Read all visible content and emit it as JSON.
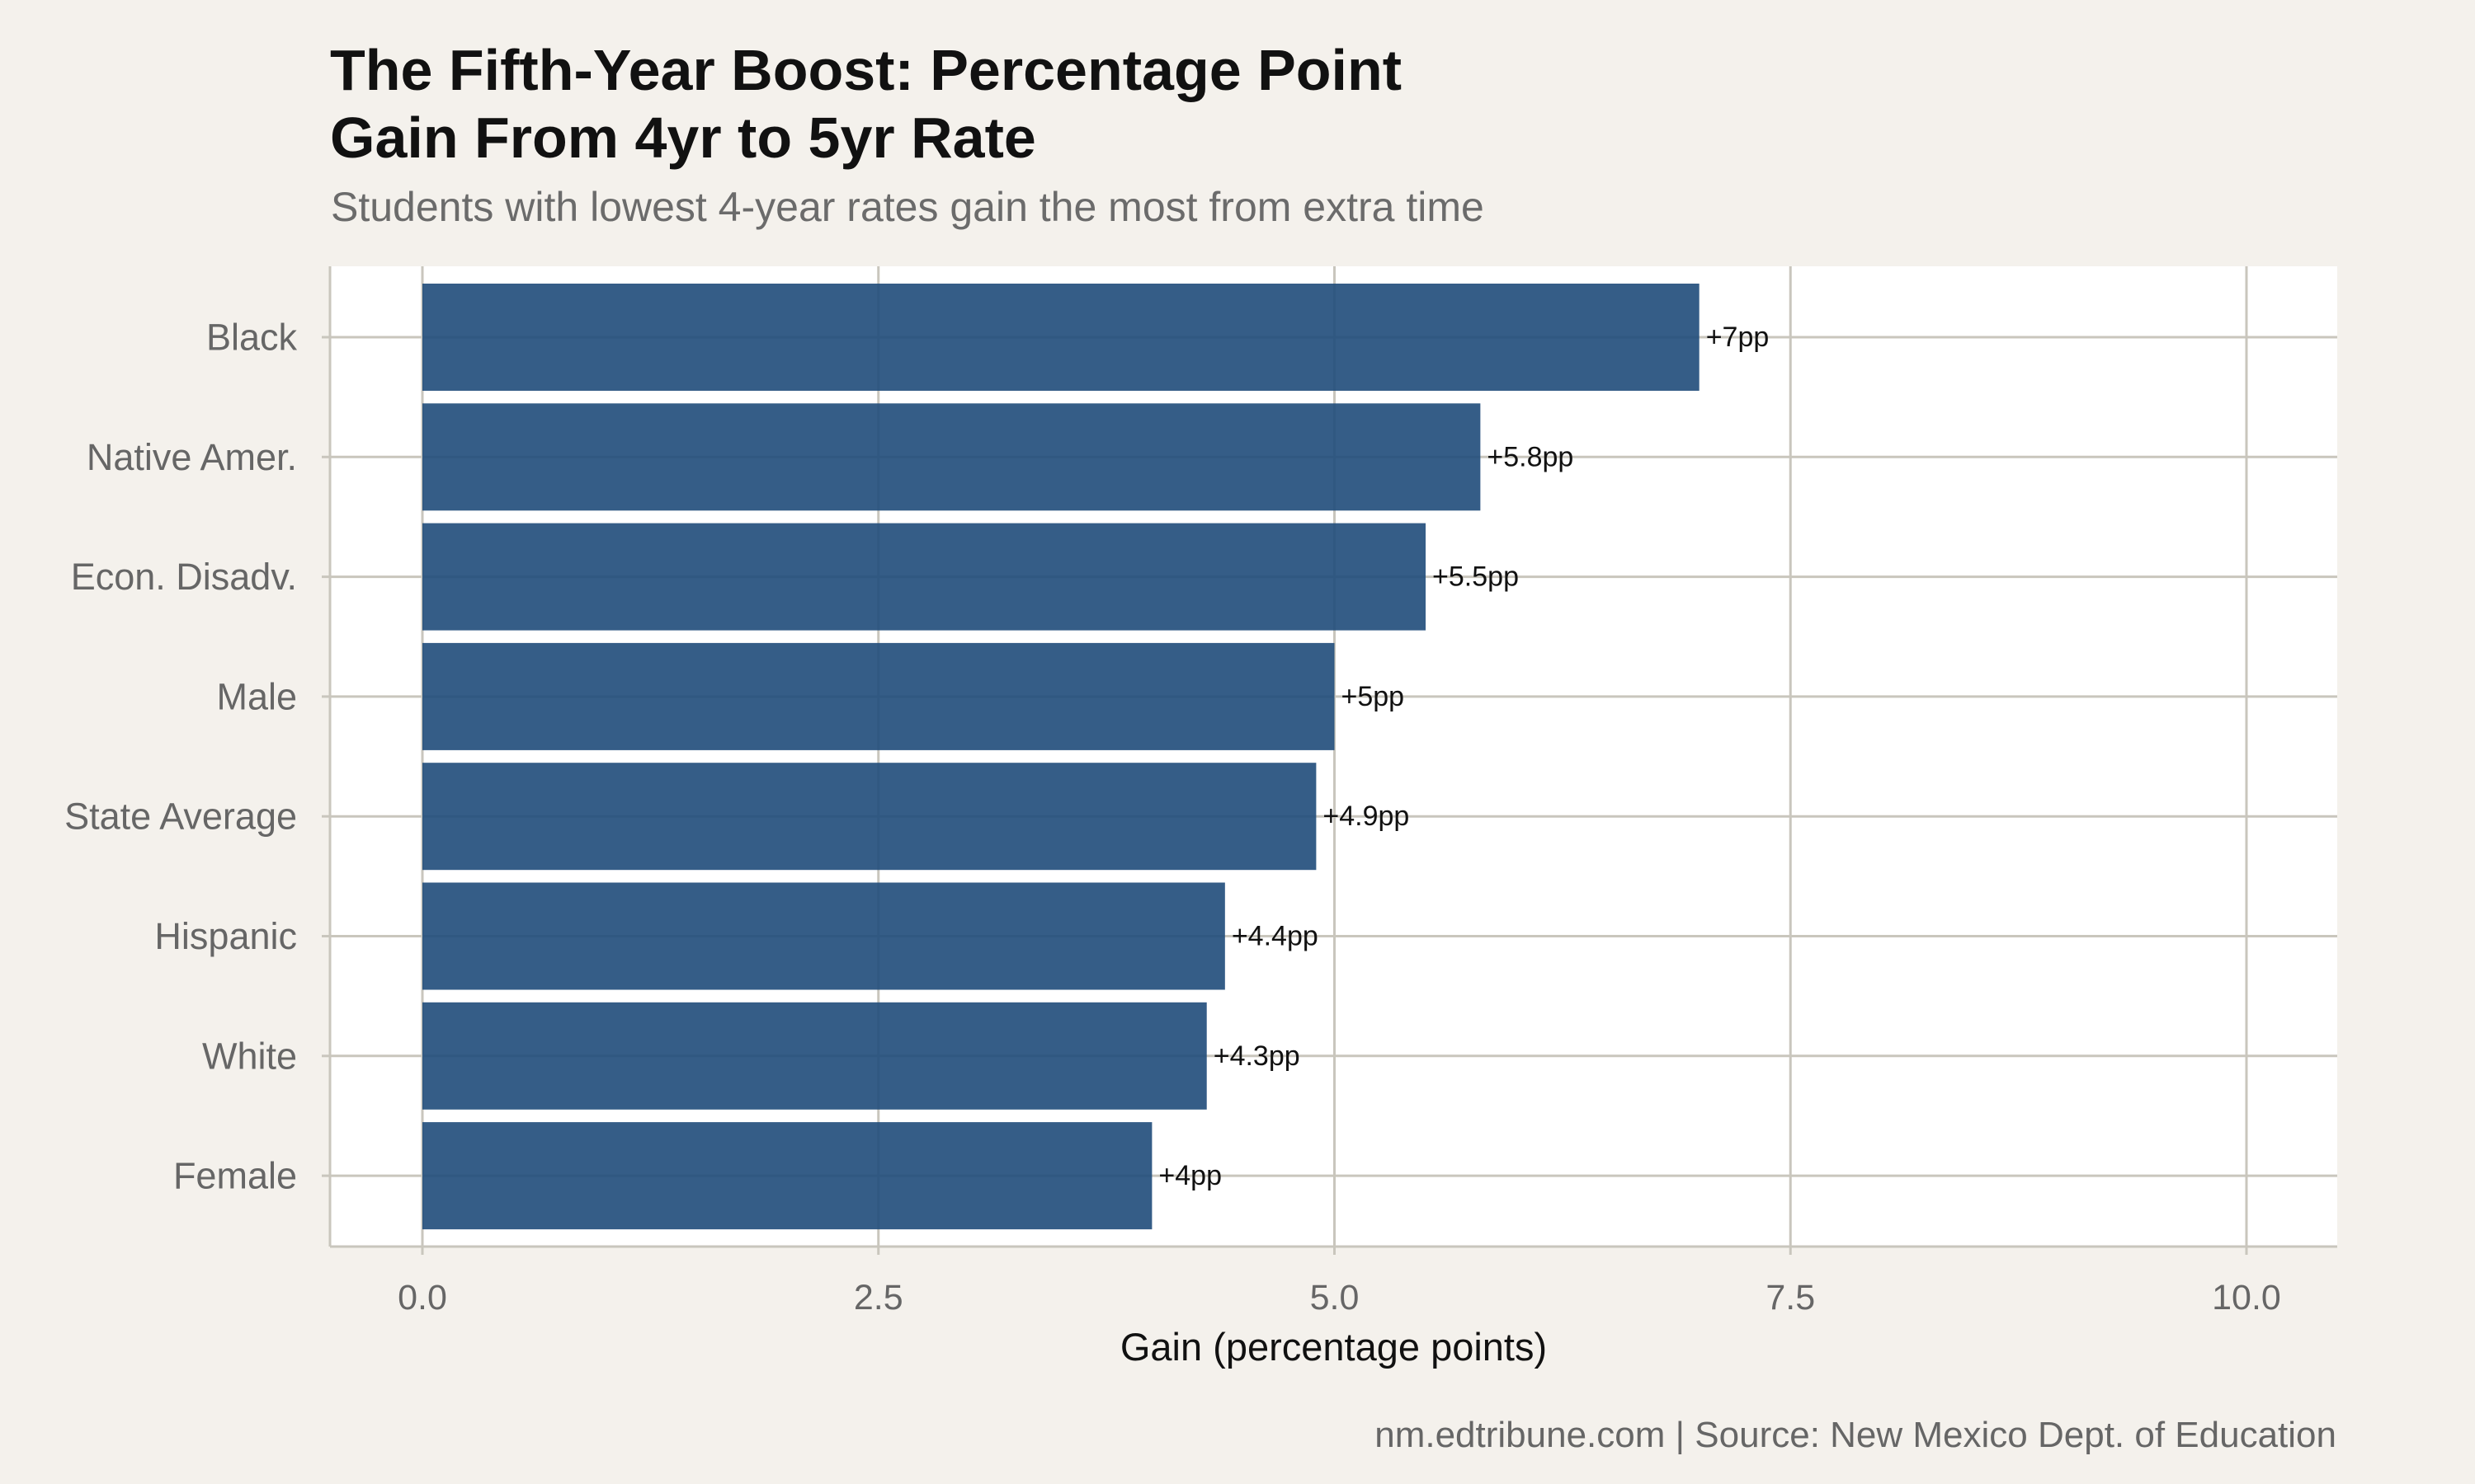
{
  "header": {
    "title": "The Fifth-Year Boost: Percentage Point\nGain From 4yr to 5yr Rate",
    "subtitle": "Students with lowest 4-year rates gain the most from extra time"
  },
  "footer": {
    "caption": "nm.edtribune.com | Source: New Mexico Dept. of Education"
  },
  "colors": {
    "bar": "#1f4b7a",
    "panel": "#ffffff",
    "background": "#f4f1ec",
    "grid": "#c9c6bd"
  },
  "chart_data": {
    "type": "bar",
    "orientation": "horizontal",
    "title": "The Fifth-Year Boost: Percentage Point Gain From 4yr to 5yr Rate",
    "subtitle": "Students with lowest 4-year rates gain the most from extra time",
    "xlabel": "Gain (percentage points)",
    "ylabel": "",
    "xlim": [
      0,
      10
    ],
    "xticks": [
      0.0,
      2.5,
      5.0,
      7.5,
      10.0
    ],
    "xtick_labels": [
      "0.0",
      "2.5",
      "5.0",
      "7.5",
      "10.0"
    ],
    "grid": true,
    "legend": "none",
    "categories": [
      "Black",
      "Native Amer.",
      "Econ. Disadv.",
      "Male",
      "State Average",
      "Hispanic",
      "White",
      "Female"
    ],
    "values": [
      7.0,
      5.8,
      5.5,
      5.0,
      4.9,
      4.4,
      4.3,
      4.0
    ],
    "data_labels": [
      "+7pp",
      "+5.8pp",
      "+5.5pp",
      "+5pp",
      "+4.9pp",
      "+4.4pp",
      "+4.3pp",
      "+4pp"
    ]
  }
}
